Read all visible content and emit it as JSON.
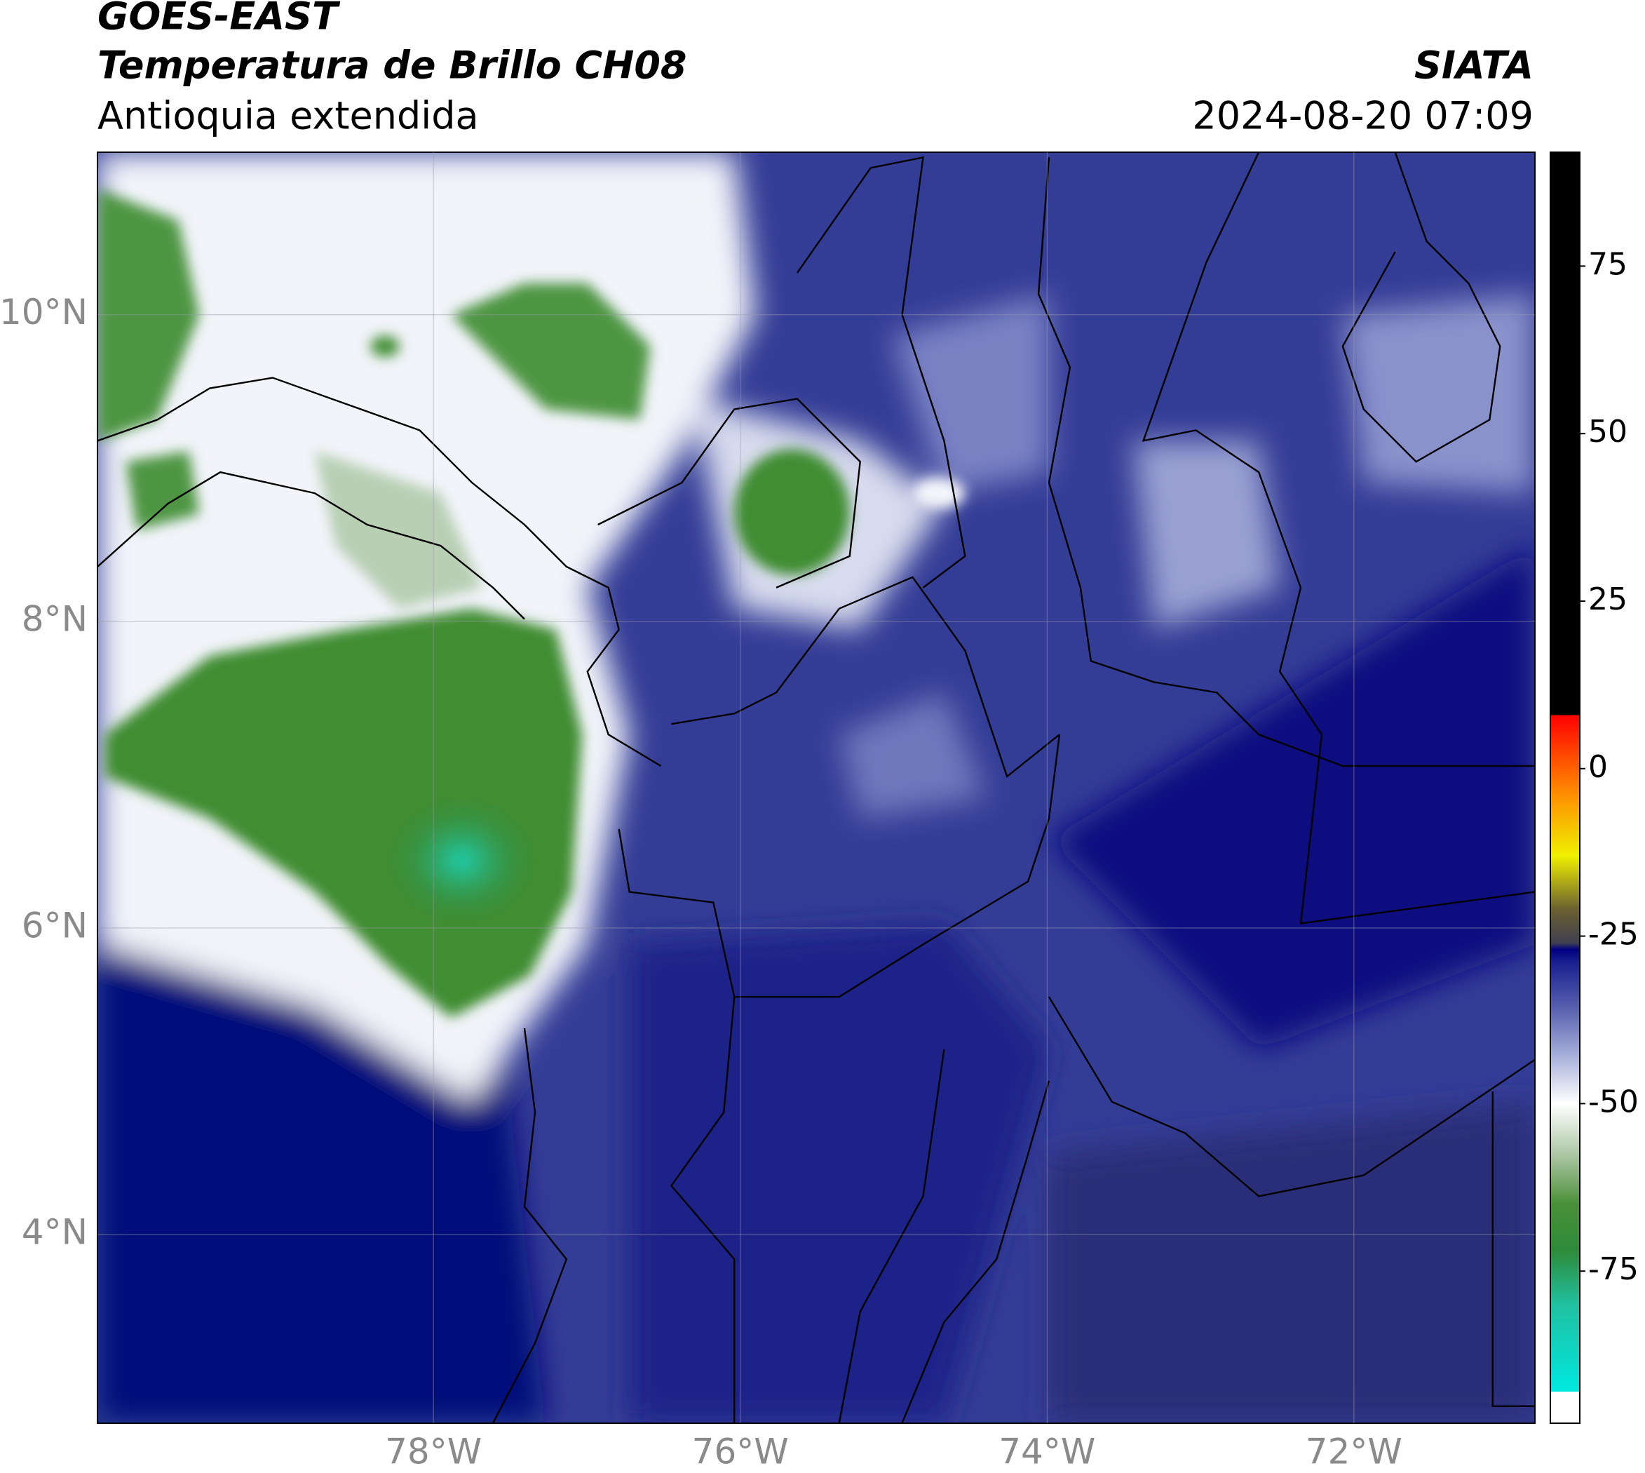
{
  "chart_data": {
    "type": "map",
    "title": "GOES-EAST",
    "subtitle": "Temperatura de Brillo CH08",
    "region": "Antioquia extendida",
    "source": "SIATA",
    "timestamp": "2024-08-20 07:09",
    "xlim": [
      -80.19,
      -70.82
    ],
    "ylim": [
      2.77,
      11.06
    ],
    "xticks": [
      {
        "value": -78,
        "label": "78°W"
      },
      {
        "value": -76,
        "label": "76°W"
      },
      {
        "value": -74,
        "label": "74°W"
      },
      {
        "value": -72,
        "label": "72°W"
      }
    ],
    "yticks": [
      {
        "value": 4,
        "label": "4°N"
      },
      {
        "value": 6,
        "label": "6°N"
      },
      {
        "value": 8,
        "label": "8°N"
      },
      {
        "value": 10,
        "label": "10°N"
      }
    ],
    "grid": true,
    "colorbar": {
      "lim": [
        -97.7,
        92
      ],
      "ticks": [
        -75,
        -50,
        -25,
        0,
        25,
        50,
        75
      ],
      "stops": [
        {
          "value": -97.7,
          "color": "#ffffff"
        },
        {
          "value": -93,
          "color": "#ffffff"
        },
        {
          "value": -93,
          "color": "#00e8e0"
        },
        {
          "value": -80,
          "color": "#20c0a0"
        },
        {
          "value": -72,
          "color": "#2e8b3a"
        },
        {
          "value": -65,
          "color": "#4a9038"
        },
        {
          "value": -58,
          "color": "#a8c4a0"
        },
        {
          "value": -50,
          "color": "#ffffff"
        },
        {
          "value": -44,
          "color": "#b4bce0"
        },
        {
          "value": -36,
          "color": "#5a63b0"
        },
        {
          "value": -29,
          "color": "#1a2090"
        },
        {
          "value": -27,
          "color": "#000080"
        },
        {
          "value": -26,
          "color": "#404050"
        },
        {
          "value": -21,
          "color": "#6a6030"
        },
        {
          "value": -13,
          "color": "#f0f000"
        },
        {
          "value": -4,
          "color": "#ff9000"
        },
        {
          "value": 8,
          "color": "#ff0000"
        },
        {
          "value": 8,
          "color": "#000000"
        },
        {
          "value": 92,
          "color": "#000000"
        }
      ]
    }
  }
}
